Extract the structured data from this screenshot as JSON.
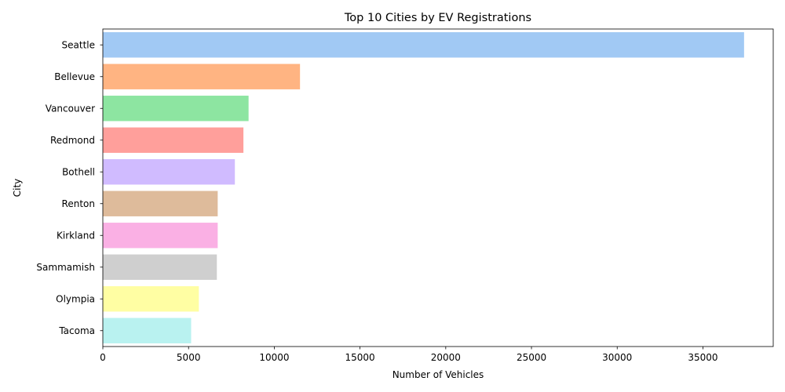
{
  "chart_data": {
    "type": "bar",
    "orientation": "horizontal",
    "title": "Top 10 Cities by EV Registrations",
    "xlabel": "Number of Vehicles",
    "ylabel": "City",
    "categories": [
      "Seattle",
      "Bellevue",
      "Vancouver",
      "Redmond",
      "Bothell",
      "Renton",
      "Kirkland",
      "Sammamish",
      "Olympia",
      "Tacoma"
    ],
    "values": [
      37400,
      11500,
      8500,
      8200,
      7700,
      6700,
      6700,
      6650,
      5600,
      5150
    ],
    "colors": [
      "#a1c9f4",
      "#ffb482",
      "#8de5a1",
      "#ff9f9b",
      "#d0bbff",
      "#debb9b",
      "#fab0e4",
      "#cfcfcf",
      "#fffea3",
      "#b9f2f0"
    ],
    "xlim": [
      0,
      39100
    ],
    "xticks": [
      0,
      5000,
      10000,
      15000,
      20000,
      25000,
      30000,
      35000
    ],
    "grid": false,
    "legend": "none"
  }
}
